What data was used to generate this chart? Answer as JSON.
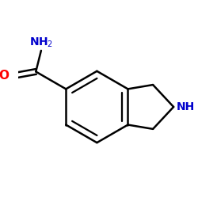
{
  "bg_color": "#ffffff",
  "bond_color": "#000000",
  "o_color": "#ff0000",
  "n_color": "#0000cc",
  "bond_width": 1.8,
  "font_size_atom": 10,
  "figsize": [
    2.5,
    2.5
  ],
  "dpi": 100,
  "xlim": [
    -0.75,
    0.95
  ],
  "ylim": [
    -0.7,
    0.65
  ]
}
